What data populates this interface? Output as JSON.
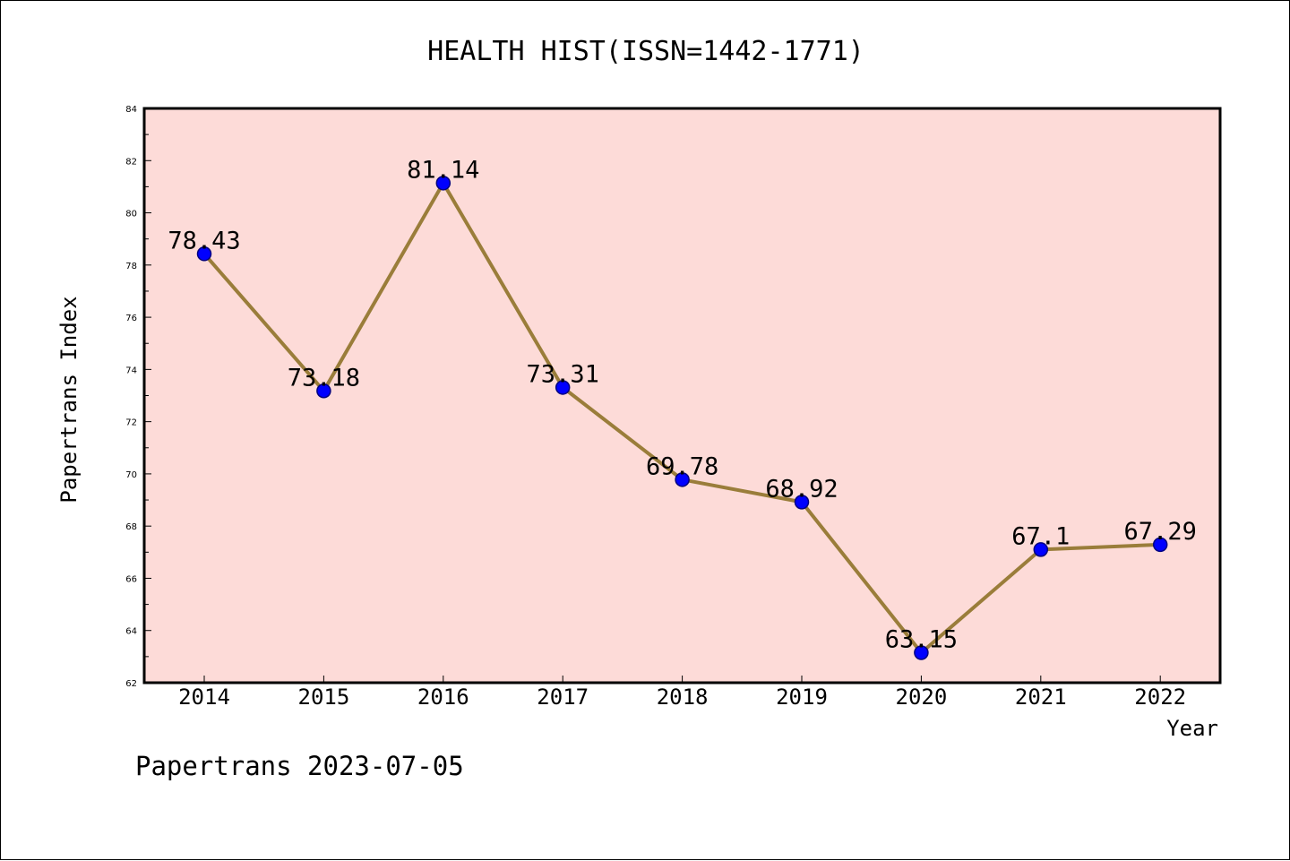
{
  "chart_data": {
    "type": "line",
    "title": "HEALTH HIST(ISSN=1442-1771)",
    "xlabel": "Year",
    "ylabel": "Papertrans Index",
    "categories": [
      "2014",
      "2015",
      "2016",
      "2017",
      "2018",
      "2019",
      "2020",
      "2021",
      "2022"
    ],
    "values": [
      78.43,
      73.18,
      81.14,
      73.31,
      69.78,
      68.92,
      63.15,
      67.1,
      67.29
    ],
    "data_labels": [
      "78.43",
      "73.18",
      "81.14",
      "73.31",
      "69.78",
      "68.92",
      "63.15",
      "67.1",
      "67.29"
    ],
    "ylim": [
      62,
      84
    ],
    "yticks": [
      "62",
      "64",
      "66",
      "68",
      "70",
      "72",
      "74",
      "76",
      "78",
      "80",
      "82",
      "84"
    ],
    "grid": false,
    "legend": "none",
    "colors": {
      "plot_background": "#fddbd8",
      "line": "#9a7d3a",
      "marker_fill": "#0000ff",
      "marker_edge": "#000080"
    }
  },
  "footer": {
    "text": "Papertrans 2023-07-05"
  }
}
